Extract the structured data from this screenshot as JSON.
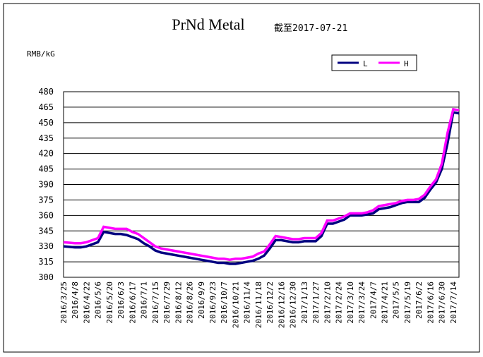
{
  "chart_data": {
    "type": "line",
    "title": "PrNd Metal",
    "subtitle": "截至2017-07-21",
    "y_label": "RMB/kG",
    "categories": [
      "2016/3/25",
      null,
      "2016/4/8",
      null,
      "2016/4/22",
      null,
      "2016/5/6",
      null,
      "2016/5/20",
      null,
      "2016/6/3",
      null,
      "2016/6/17",
      null,
      "2016/7/1",
      null,
      "2016/7/15",
      null,
      "2016/7/29",
      null,
      "2016/8/12",
      null,
      "2016/8/26",
      null,
      "2016/9/9",
      null,
      "2016/9/23",
      null,
      "2016/10/7",
      null,
      "2016/10/21",
      null,
      "2016/11/4",
      null,
      "2016/11/18",
      null,
      "2016/12/2",
      null,
      "2016/12/16",
      null,
      "2016/12/30",
      null,
      "2017/1/13",
      null,
      "2017/1/27",
      null,
      "2017/2/10",
      null,
      "2017/2/24",
      null,
      "2017/3/10",
      null,
      "2017/3/24",
      null,
      "2017/4/7",
      null,
      "2017/4/21",
      null,
      "2017/5/5",
      null,
      "2017/5/19",
      null,
      "2017/6/2",
      null,
      "2017/6/16",
      null,
      "2017/6/30",
      null,
      "2017/7/14",
      null
    ],
    "series": [
      {
        "name": "L",
        "color": "#000080",
        "values": [
          330,
          329.5,
          329,
          329,
          330,
          332,
          334,
          344,
          343,
          342,
          342,
          341,
          339,
          337,
          333,
          330,
          326,
          324,
          323,
          322,
          321,
          320,
          319,
          318,
          317,
          316,
          315,
          314,
          314,
          313,
          313,
          314,
          315,
          316,
          318,
          321,
          328,
          336,
          336,
          335,
          334,
          334,
          335,
          335,
          335,
          340,
          352,
          352,
          354,
          356,
          360,
          360,
          360,
          361,
          362,
          366,
          367,
          368,
          370,
          372,
          373,
          373,
          373,
          377,
          385,
          392,
          405,
          430,
          460,
          459
        ]
      },
      {
        "name": "H",
        "color": "#ff00ff",
        "values": [
          334,
          333.5,
          333,
          333,
          334,
          336,
          338,
          349,
          348,
          347,
          347,
          347,
          344,
          342,
          338,
          334,
          330,
          328,
          327,
          326,
          325,
          324,
          323,
          322,
          321,
          320,
          319,
          318,
          318,
          317,
          318,
          318,
          319,
          320,
          323,
          325,
          332,
          340,
          339,
          338,
          337,
          337,
          338,
          338,
          338,
          343,
          355,
          355,
          357,
          359,
          362,
          362,
          362,
          363,
          365,
          369,
          370,
          371,
          372,
          374,
          375,
          375,
          376,
          380,
          388,
          395,
          410,
          440,
          463,
          462
        ]
      }
    ],
    "ylim": [
      300,
      480
    ],
    "yticks": [
      300,
      315,
      330,
      345,
      360,
      375,
      390,
      405,
      420,
      435,
      450,
      465,
      480
    ],
    "grid": true,
    "legend": "top-right"
  }
}
